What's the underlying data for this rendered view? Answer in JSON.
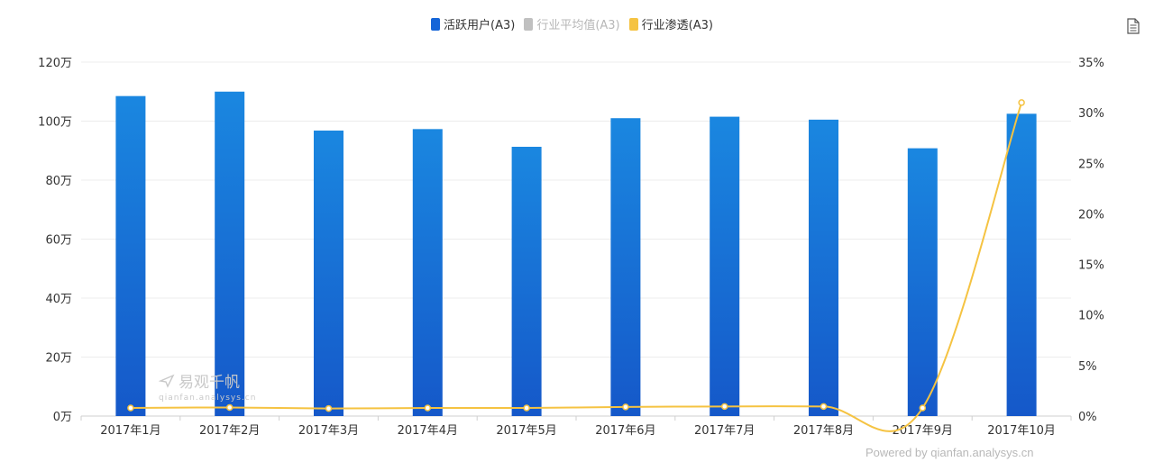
{
  "legend": [
    {
      "label": "活跃用户(A3)",
      "color": "#1565d8",
      "active": true
    },
    {
      "label": "行业平均值(A3)",
      "color": "#c0c0c0",
      "active": false
    },
    {
      "label": "行业渗透(A3)",
      "color": "#f5c342",
      "active": true
    }
  ],
  "watermark": {
    "title": "易观千帆",
    "sub": "qianfan.analysys.cn"
  },
  "powered_by": "Powered by qianfan.analysys.cn",
  "chart_data": {
    "type": "bar",
    "categories": [
      "2017年1月",
      "2017年2月",
      "2017年3月",
      "2017年4月",
      "2017年5月",
      "2017年6月",
      "2017年7月",
      "2017年8月",
      "2017年9月",
      "2017年10月"
    ],
    "series": [
      {
        "name": "活跃用户(A3)",
        "type": "bar",
        "axis": "left",
        "values": [
          108.5,
          110,
          96.8,
          97.3,
          91.3,
          101,
          101.5,
          100.5,
          90.8,
          102.5
        ]
      },
      {
        "name": "行业渗透(A3)",
        "type": "line",
        "axis": "right",
        "values": [
          0.8,
          0.85,
          0.75,
          0.8,
          0.8,
          0.9,
          0.95,
          0.95,
          0.8,
          31
        ]
      }
    ],
    "y_left": {
      "ticks": [
        "0万",
        "20万",
        "40万",
        "60万",
        "80万",
        "100万",
        "120万"
      ],
      "min": 0,
      "max": 120
    },
    "y_right": {
      "ticks": [
        "0%",
        "5%",
        "10%",
        "15%",
        "20%",
        "25%",
        "30%",
        "35%"
      ],
      "min": 0,
      "max": 35
    },
    "grid": true,
    "legend_position": "top-center",
    "colors": {
      "bar_top": "#1a87e0",
      "bar_bottom": "#1558c9",
      "line": "#f5c342",
      "grid": "#ececec",
      "axis": "#cfcfcf"
    }
  }
}
